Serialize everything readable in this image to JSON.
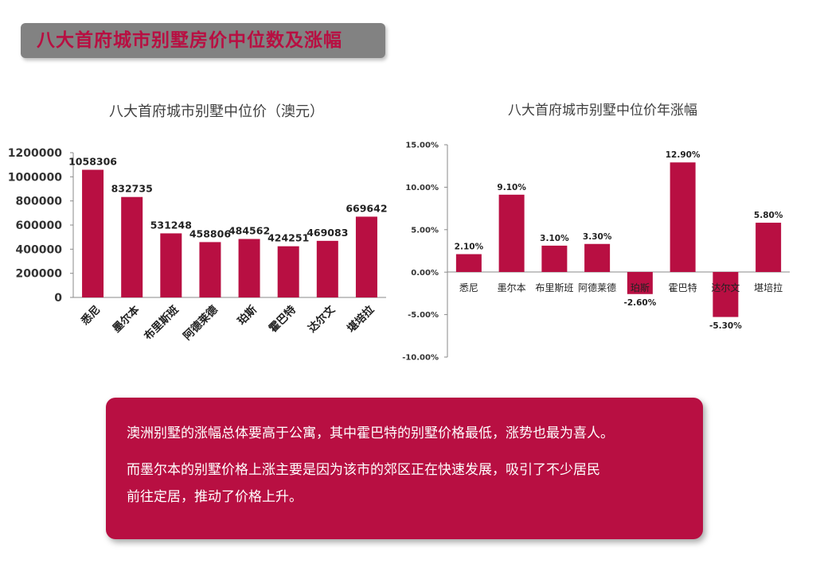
{
  "page_title": "八大首府城市别墅房价中位数及涨幅",
  "colors": {
    "bar": "#b80f42",
    "banner_bg": "#828282",
    "banner_text": "#b80f42",
    "box_bg": "#b80f42"
  },
  "chart_data": [
    {
      "type": "bar",
      "title": "八大首府城市别墅中位价（澳元）",
      "categories": [
        "悉尼",
        "墨尔本",
        "布里斯班",
        "阿德莱德",
        "珀斯",
        "霍巴特",
        "达尔文",
        "堪培拉"
      ],
      "values": [
        1058306,
        832735,
        531248,
        458806,
        484562,
        424251,
        469083,
        669642
      ],
      "data_labels": [
        "1058306",
        "832735",
        "531248",
        "458806",
        "484562",
        "424251",
        "469083",
        "669642"
      ],
      "y_ticks": [
        "1200000",
        "1000000",
        "800000",
        "600000",
        "400000",
        "200000",
        "0"
      ],
      "ylim": [
        0,
        1200000
      ],
      "grid": false,
      "legend": "none"
    },
    {
      "type": "bar",
      "title": "八大首府城市别墅中位价年涨幅",
      "categories": [
        "悉尼",
        "墨尔本",
        "布里斯班",
        "阿德莱德",
        "珀斯",
        "霍巴特",
        "达尔文",
        "堪培拉"
      ],
      "values": [
        2.1,
        9.1,
        3.1,
        3.3,
        -2.6,
        12.9,
        -5.3,
        5.8
      ],
      "data_labels": [
        "2.10%",
        "9.10%",
        "3.10%",
        "3.30%",
        "-2.60%",
        "12.90%",
        "-5.30%",
        "5.80%"
      ],
      "y_ticks": [
        "15.00%",
        "10.00%",
        "5.00%",
        "0.00%",
        "-5.00%",
        "-10.00%"
      ],
      "ylim": [
        -10,
        15
      ],
      "grid": false,
      "legend": "none"
    }
  ],
  "summary": {
    "line1": "澳洲别墅的涨幅总体要高于公寓，其中霍巴特的别墅价格最低，涨势也最为喜人。",
    "line2": "而墨尔本的别墅价格上涨主要是因为该市的郊区正在快速发展，吸引了不少居民",
    "line3": "前往定居，推动了价格上升。"
  }
}
